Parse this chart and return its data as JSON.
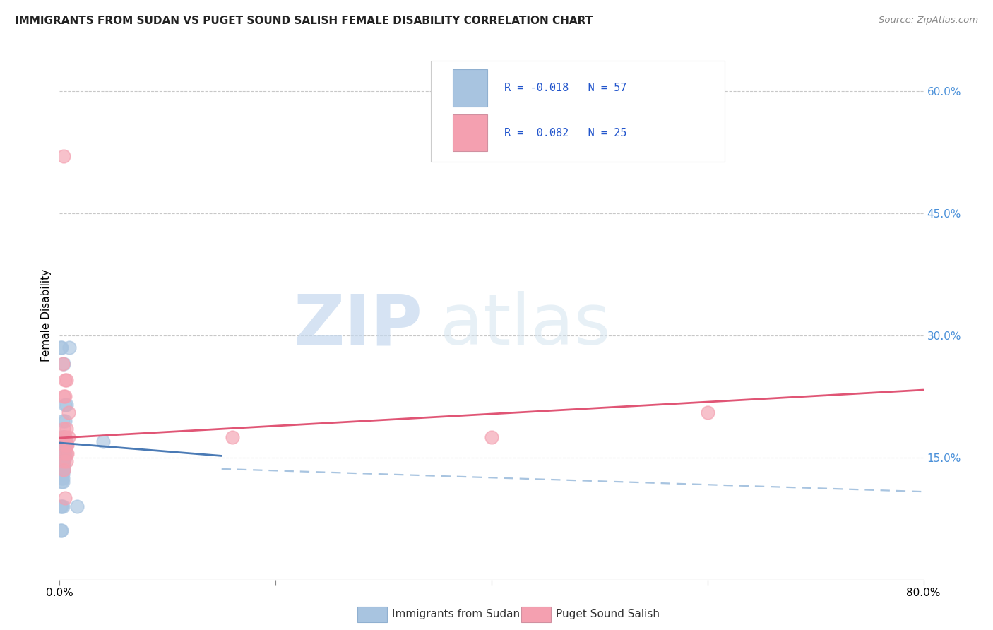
{
  "title": "IMMIGRANTS FROM SUDAN VS PUGET SOUND SALISH FEMALE DISABILITY CORRELATION CHART",
  "source": "Source: ZipAtlas.com",
  "ylabel": "Female Disability",
  "right_yticks": [
    "60.0%",
    "45.0%",
    "30.0%",
    "15.0%"
  ],
  "right_ytick_vals": [
    0.6,
    0.45,
    0.3,
    0.15
  ],
  "xlim": [
    0.0,
    0.8
  ],
  "ylim": [
    0.0,
    0.65
  ],
  "legend_blue_R": "R = -0.018",
  "legend_blue_N": "N = 57",
  "legend_pink_R": "R =  0.082",
  "legend_pink_N": "N = 25",
  "legend_label_blue": "Immigrants from Sudan",
  "legend_label_pink": "Puget Sound Salish",
  "blue_color": "#a8c4e0",
  "pink_color": "#f4a0b0",
  "blue_line_color": "#4a7ab5",
  "pink_line_color": "#e05575",
  "watermark_zip": "ZIP",
  "watermark_atlas": "atlas",
  "blue_scatter": [
    [
      0.002,
      0.285
    ],
    [
      0.004,
      0.265
    ],
    [
      0.005,
      0.215
    ],
    [
      0.006,
      0.215
    ],
    [
      0.003,
      0.195
    ],
    [
      0.005,
      0.195
    ],
    [
      0.003,
      0.175
    ],
    [
      0.004,
      0.175
    ],
    [
      0.005,
      0.175
    ],
    [
      0.003,
      0.17
    ],
    [
      0.004,
      0.17
    ],
    [
      0.005,
      0.17
    ],
    [
      0.006,
      0.17
    ],
    [
      0.002,
      0.165
    ],
    [
      0.003,
      0.165
    ],
    [
      0.004,
      0.165
    ],
    [
      0.005,
      0.165
    ],
    [
      0.006,
      0.165
    ],
    [
      0.002,
      0.16
    ],
    [
      0.003,
      0.16
    ],
    [
      0.004,
      0.16
    ],
    [
      0.005,
      0.16
    ],
    [
      0.002,
      0.155
    ],
    [
      0.003,
      0.155
    ],
    [
      0.004,
      0.155
    ],
    [
      0.005,
      0.155
    ],
    [
      0.002,
      0.15
    ],
    [
      0.003,
      0.15
    ],
    [
      0.004,
      0.15
    ],
    [
      0.005,
      0.15
    ],
    [
      0.002,
      0.145
    ],
    [
      0.003,
      0.145
    ],
    [
      0.004,
      0.145
    ],
    [
      0.002,
      0.14
    ],
    [
      0.003,
      0.14
    ],
    [
      0.004,
      0.14
    ],
    [
      0.002,
      0.135
    ],
    [
      0.003,
      0.135
    ],
    [
      0.004,
      0.135
    ],
    [
      0.002,
      0.13
    ],
    [
      0.003,
      0.13
    ],
    [
      0.002,
      0.125
    ],
    [
      0.003,
      0.125
    ],
    [
      0.002,
      0.12
    ],
    [
      0.003,
      0.12
    ],
    [
      0.002,
      0.09
    ],
    [
      0.003,
      0.09
    ],
    [
      0.001,
      0.09
    ],
    [
      0.001,
      0.06
    ],
    [
      0.002,
      0.06
    ],
    [
      0.001,
      0.285
    ],
    [
      0.009,
      0.285
    ],
    [
      0.016,
      0.09
    ],
    [
      0.04,
      0.17
    ],
    [
      0.001,
      0.175
    ],
    [
      0.001,
      0.165
    ],
    [
      0.001,
      0.155
    ]
  ],
  "pink_scatter": [
    [
      0.004,
      0.52
    ],
    [
      0.003,
      0.265
    ],
    [
      0.005,
      0.245
    ],
    [
      0.006,
      0.245
    ],
    [
      0.004,
      0.225
    ],
    [
      0.005,
      0.225
    ],
    [
      0.008,
      0.205
    ],
    [
      0.004,
      0.185
    ],
    [
      0.006,
      0.185
    ],
    [
      0.004,
      0.175
    ],
    [
      0.005,
      0.175
    ],
    [
      0.008,
      0.175
    ],
    [
      0.004,
      0.165
    ],
    [
      0.006,
      0.165
    ],
    [
      0.007,
      0.165
    ],
    [
      0.004,
      0.155
    ],
    [
      0.006,
      0.155
    ],
    [
      0.007,
      0.155
    ],
    [
      0.004,
      0.145
    ],
    [
      0.006,
      0.145
    ],
    [
      0.004,
      0.135
    ],
    [
      0.005,
      0.1
    ],
    [
      0.4,
      0.175
    ],
    [
      0.6,
      0.205
    ],
    [
      0.16,
      0.175
    ]
  ],
  "blue_solid_trendline": [
    [
      0.0,
      0.168
    ],
    [
      0.15,
      0.152
    ]
  ],
  "blue_dashed_trendline": [
    [
      0.15,
      0.136
    ],
    [
      0.8,
      0.108
    ]
  ],
  "pink_trendline": [
    [
      0.0,
      0.174
    ],
    [
      0.8,
      0.233
    ]
  ]
}
